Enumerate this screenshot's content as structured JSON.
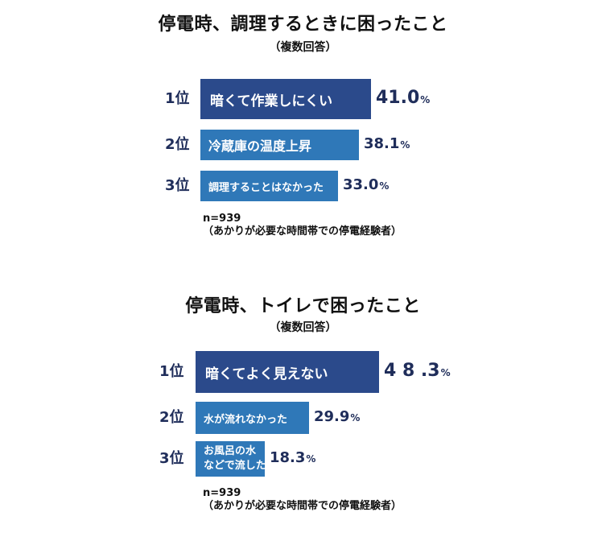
{
  "colors": {
    "rank1": "#2b4a8b",
    "others": "#2f78b8",
    "text_dark": "#1f2d5a"
  },
  "chart_data": [
    {
      "type": "bar",
      "orientation": "horizontal",
      "title": "停電時、調理するときに困ったこと",
      "subtitle": "（複数回答）",
      "categories": [
        "暗くて作業しにくい",
        "冷蔵庫の温度上昇",
        "調理することはなかった"
      ],
      "ranks": [
        "1位",
        "2位",
        "3位"
      ],
      "values": [
        41.0,
        38.1,
        33.0
      ],
      "value_labels": [
        "41.0",
        "38.1",
        "33.0"
      ],
      "unit": "%",
      "note_n": "n=939",
      "note_population": "（あかりが必要な時間帯での停電経験者）"
    },
    {
      "type": "bar",
      "orientation": "horizontal",
      "title": "停電時、トイレで困ったこと",
      "subtitle": "（複数回答）",
      "categories": [
        "暗くてよく見えない",
        "水が流れなかった",
        "お風呂の水\nなどで流した"
      ],
      "ranks": [
        "1位",
        "2位",
        "3位"
      ],
      "values": [
        48.3,
        29.9,
        18.3
      ],
      "value_labels": [
        "4 8 .3",
        "29.9",
        "18.3"
      ],
      "unit": "%",
      "note_n": "n=939",
      "note_population": "（あかりが必要な時間帯での停電経験者）"
    }
  ]
}
